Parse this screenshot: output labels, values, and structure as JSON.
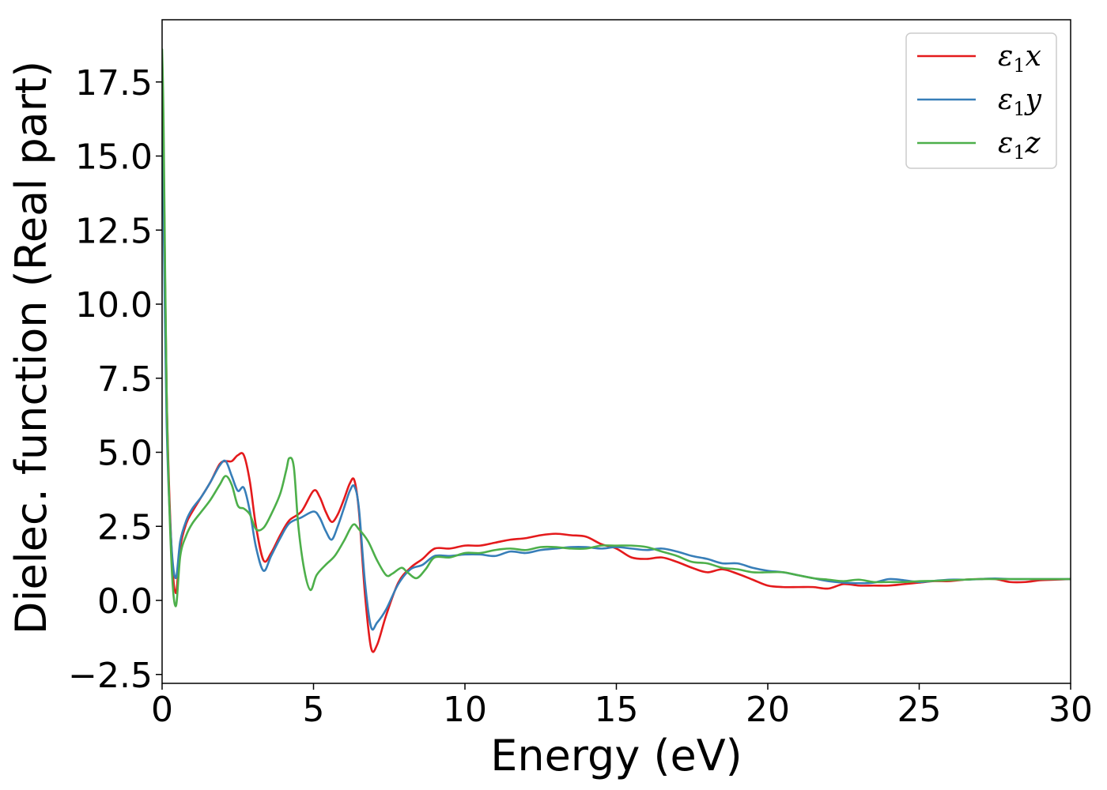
{
  "chart_data": {
    "type": "line",
    "title": "",
    "xlabel": "Energy (eV)",
    "ylabel": "Dielec. function (Real part)",
    "xlim": [
      0,
      30
    ],
    "ylim": [
      -2.8,
      19.6
    ],
    "xticks": [
      0,
      5,
      10,
      15,
      20,
      25,
      30
    ],
    "xtick_labels": [
      "0",
      "5",
      "10",
      "15",
      "20",
      "25",
      "30"
    ],
    "yticks": [
      -2.5,
      0.0,
      2.5,
      5.0,
      7.5,
      10.0,
      12.5,
      15.0,
      17.5
    ],
    "ytick_labels": [
      "−2.5",
      "0.0",
      "2.5",
      "5.0",
      "7.5",
      "10.0",
      "12.5",
      "15.0",
      "17.5"
    ],
    "grid": false,
    "legend": "top-right",
    "series": [
      {
        "name": "ε₁x",
        "legend_parts": [
          "ε",
          "1",
          "x"
        ],
        "color": "#e41a1c",
        "x": [
          0,
          0.05,
          0.15,
          0.3,
          0.45,
          0.6,
          0.8,
          1.0,
          1.3,
          1.6,
          1.9,
          2.1,
          2.3,
          2.5,
          2.7,
          2.9,
          3.1,
          3.35,
          3.6,
          3.9,
          4.2,
          4.6,
          5.0,
          5.2,
          5.4,
          5.6,
          5.8,
          6.0,
          6.2,
          6.35,
          6.5,
          6.7,
          6.9,
          7.1,
          7.4,
          7.8,
          8.2,
          8.6,
          9.0,
          9.5,
          10.0,
          10.5,
          11.0,
          11.5,
          12.0,
          12.5,
          13.0,
          13.5,
          14.0,
          14.5,
          15.0,
          15.5,
          16.0,
          16.5,
          17.0,
          17.5,
          18.0,
          18.5,
          19.0,
          19.5,
          20.0,
          20.5,
          21.0,
          21.5,
          22.0,
          22.5,
          23.0,
          23.5,
          24.0,
          24.5,
          25.0,
          25.5,
          26.0,
          26.5,
          27.0,
          27.5,
          28.0,
          28.5,
          29.0,
          29.5,
          30.0
        ],
        "values": [
          18.0,
          15.0,
          7.0,
          2.0,
          0.25,
          1.8,
          2.6,
          3.0,
          3.5,
          4.0,
          4.6,
          4.7,
          4.7,
          4.9,
          4.9,
          4.0,
          2.5,
          1.35,
          1.6,
          2.2,
          2.7,
          3.0,
          3.7,
          3.5,
          3.0,
          2.65,
          2.9,
          3.4,
          3.95,
          4.05,
          3.0,
          0.2,
          -1.6,
          -1.5,
          -0.5,
          0.6,
          1.1,
          1.4,
          1.75,
          1.75,
          1.85,
          1.85,
          1.95,
          2.05,
          2.1,
          2.2,
          2.25,
          2.2,
          2.15,
          1.9,
          1.75,
          1.45,
          1.4,
          1.45,
          1.3,
          1.1,
          0.95,
          1.05,
          0.9,
          0.7,
          0.5,
          0.45,
          0.45,
          0.45,
          0.4,
          0.55,
          0.5,
          0.5,
          0.5,
          0.55,
          0.6,
          0.65,
          0.65,
          0.7,
          0.72,
          0.72,
          0.62,
          0.62,
          0.68,
          0.7,
          0.72
        ]
      },
      {
        "name": "ε₁y",
        "legend_parts": [
          "ε",
          "1",
          "y"
        ],
        "color": "#377eb8",
        "x": [
          0,
          0.05,
          0.15,
          0.3,
          0.45,
          0.6,
          0.8,
          1.0,
          1.3,
          1.6,
          1.9,
          2.1,
          2.3,
          2.5,
          2.7,
          2.9,
          3.1,
          3.35,
          3.6,
          3.9,
          4.2,
          4.6,
          5.0,
          5.2,
          5.4,
          5.6,
          5.8,
          6.0,
          6.2,
          6.35,
          6.5,
          6.7,
          6.9,
          7.1,
          7.4,
          7.8,
          8.2,
          8.6,
          9.0,
          9.5,
          10.0,
          10.5,
          11.0,
          11.5,
          12.0,
          12.5,
          13.0,
          13.5,
          14.0,
          14.5,
          15.0,
          15.5,
          16.0,
          16.5,
          17.0,
          17.5,
          18.0,
          18.5,
          19.0,
          19.5,
          20.0,
          20.5,
          21.0,
          21.5,
          22.0,
          22.5,
          23.0,
          23.5,
          24.0,
          24.5,
          25.0,
          25.5,
          26.0,
          26.5,
          27.0,
          27.5,
          28.0,
          28.5,
          29.0,
          29.5,
          30.0
        ],
        "values": [
          16.0,
          13.0,
          6.0,
          2.0,
          0.75,
          2.0,
          2.7,
          3.1,
          3.5,
          4.0,
          4.55,
          4.7,
          4.2,
          3.7,
          3.8,
          3.0,
          1.8,
          1.0,
          1.5,
          2.1,
          2.6,
          2.8,
          3.0,
          2.8,
          2.35,
          2.05,
          2.5,
          3.1,
          3.7,
          3.85,
          3.1,
          0.6,
          -0.9,
          -0.75,
          -0.3,
          0.55,
          1.05,
          1.2,
          1.5,
          1.5,
          1.55,
          1.55,
          1.5,
          1.65,
          1.6,
          1.7,
          1.75,
          1.8,
          1.8,
          1.75,
          1.8,
          1.75,
          1.7,
          1.75,
          1.65,
          1.5,
          1.4,
          1.25,
          1.25,
          1.1,
          1.0,
          0.95,
          0.85,
          0.75,
          0.65,
          0.6,
          0.58,
          0.6,
          0.72,
          0.68,
          0.62,
          0.66,
          0.7,
          0.7,
          0.72,
          0.74,
          0.72,
          0.72,
          0.72,
          0.72,
          0.72
        ]
      },
      {
        "name": "ε₁z",
        "legend_parts": [
          "ε",
          "1",
          "z"
        ],
        "color": "#4daf4a",
        "x": [
          0,
          0.05,
          0.15,
          0.3,
          0.45,
          0.6,
          0.8,
          1.0,
          1.3,
          1.6,
          1.9,
          2.1,
          2.3,
          2.5,
          2.7,
          2.9,
          3.1,
          3.35,
          3.6,
          3.9,
          4.1,
          4.2,
          4.35,
          4.5,
          4.7,
          4.9,
          5.1,
          5.4,
          5.7,
          6.0,
          6.3,
          6.5,
          6.8,
          7.1,
          7.4,
          7.6,
          7.9,
          8.1,
          8.4,
          8.7,
          9.0,
          9.5,
          10.0,
          10.5,
          11.0,
          11.5,
          12.0,
          12.5,
          13.0,
          13.5,
          14.0,
          14.5,
          15.0,
          15.5,
          16.0,
          16.5,
          17.0,
          17.5,
          18.0,
          18.5,
          19.0,
          19.5,
          20.0,
          20.5,
          21.0,
          21.5,
          22.0,
          22.5,
          23.0,
          23.5,
          24.0,
          24.5,
          25.0,
          25.5,
          26.0,
          26.5,
          27.0,
          27.5,
          28.0,
          28.5,
          29.0,
          29.5,
          30.0
        ],
        "values": [
          18.6,
          16.0,
          7.0,
          1.5,
          -0.2,
          1.5,
          2.2,
          2.6,
          3.0,
          3.4,
          3.9,
          4.2,
          3.9,
          3.2,
          3.1,
          2.9,
          2.4,
          2.45,
          2.9,
          3.6,
          4.4,
          4.8,
          4.5,
          2.5,
          1.0,
          0.35,
          0.85,
          1.2,
          1.5,
          2.0,
          2.55,
          2.4,
          2.0,
          1.35,
          0.85,
          0.9,
          1.1,
          0.95,
          0.75,
          1.05,
          1.45,
          1.45,
          1.6,
          1.6,
          1.7,
          1.75,
          1.7,
          1.8,
          1.8,
          1.75,
          1.75,
          1.85,
          1.85,
          1.85,
          1.8,
          1.65,
          1.5,
          1.3,
          1.25,
          1.1,
          1.05,
          0.95,
          0.95,
          0.95,
          0.85,
          0.75,
          0.7,
          0.65,
          0.7,
          0.62,
          0.62,
          0.62,
          0.65,
          0.66,
          0.68,
          0.7,
          0.72,
          0.72,
          0.72,
          0.72,
          0.72,
          0.72,
          0.72
        ]
      }
    ]
  }
}
